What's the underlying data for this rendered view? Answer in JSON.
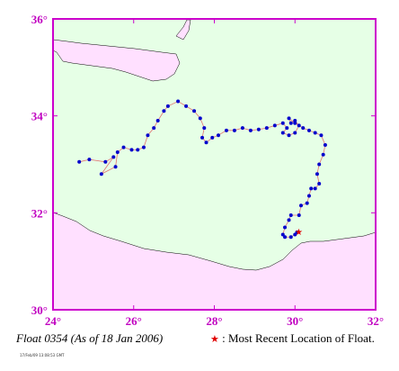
{
  "map": {
    "lon_range": [
      24,
      32
    ],
    "lat_range": [
      30,
      36
    ],
    "sea_color": "#e6ffe6",
    "land_color": "#ffe0ff",
    "frame_color": "#cc00cc",
    "track_color": "#0000cc",
    "line_color": "#e07070",
    "recent_color": "#e00000",
    "x_ticks": [
      {
        "value": 24,
        "label": "24°"
      },
      {
        "value": 26,
        "label": "26°"
      },
      {
        "value": 28,
        "label": "28°"
      },
      {
        "value": 30,
        "label": "30°"
      },
      {
        "value": 32,
        "label": "32°"
      }
    ],
    "y_ticks": [
      {
        "value": 30,
        "label": "30°"
      },
      {
        "value": 32,
        "label": "32°"
      },
      {
        "value": 34,
        "label": "34°"
      },
      {
        "value": 36,
        "label": "36°"
      }
    ],
    "track": [
      [
        24.65,
        33.05
      ],
      [
        24.9,
        33.1
      ],
      [
        25.3,
        33.05
      ],
      [
        25.5,
        33.15
      ],
      [
        25.2,
        32.8
      ],
      [
        25.55,
        32.95
      ],
      [
        25.6,
        33.25
      ],
      [
        25.75,
        33.35
      ],
      [
        25.95,
        33.3
      ],
      [
        26.1,
        33.3
      ],
      [
        26.25,
        33.35
      ],
      [
        26.35,
        33.6
      ],
      [
        26.5,
        33.75
      ],
      [
        26.6,
        33.9
      ],
      [
        26.75,
        34.1
      ],
      [
        26.85,
        34.2
      ],
      [
        27.1,
        34.3
      ],
      [
        27.3,
        34.2
      ],
      [
        27.5,
        34.1
      ],
      [
        27.65,
        33.95
      ],
      [
        27.75,
        33.75
      ],
      [
        27.7,
        33.55
      ],
      [
        27.8,
        33.45
      ],
      [
        27.95,
        33.55
      ],
      [
        28.1,
        33.6
      ],
      [
        28.3,
        33.7
      ],
      [
        28.5,
        33.7
      ],
      [
        28.7,
        33.75
      ],
      [
        28.9,
        33.7
      ],
      [
        29.1,
        33.72
      ],
      [
        29.3,
        33.75
      ],
      [
        29.5,
        33.8
      ],
      [
        29.7,
        33.85
      ],
      [
        29.8,
        33.75
      ],
      [
        29.7,
        33.65
      ],
      [
        29.85,
        33.6
      ],
      [
        30.0,
        33.65
      ],
      [
        30.1,
        33.8
      ],
      [
        30.0,
        33.9
      ],
      [
        29.9,
        33.85
      ],
      [
        29.85,
        33.95
      ],
      [
        30.0,
        33.85
      ],
      [
        30.2,
        33.75
      ],
      [
        30.35,
        33.7
      ],
      [
        30.5,
        33.65
      ],
      [
        30.65,
        33.6
      ],
      [
        30.75,
        33.4
      ],
      [
        30.7,
        33.2
      ],
      [
        30.6,
        33.0
      ],
      [
        30.55,
        32.8
      ],
      [
        30.6,
        32.6
      ],
      [
        30.5,
        32.5
      ],
      [
        30.4,
        32.5
      ],
      [
        30.35,
        32.35
      ],
      [
        30.3,
        32.2
      ],
      [
        30.15,
        32.15
      ],
      [
        30.1,
        31.95
      ],
      [
        29.9,
        31.95
      ],
      [
        29.85,
        31.85
      ],
      [
        29.75,
        31.7
      ],
      [
        29.7,
        31.55
      ],
      [
        29.75,
        31.5
      ],
      [
        29.9,
        31.5
      ],
      [
        30.0,
        31.55
      ],
      [
        30.05,
        31.6
      ]
    ],
    "recent_position": [
      30.05,
      31.6
    ]
  },
  "caption": {
    "float_title": "Float 0354 (As of 18 Jan 2006)",
    "legend_text": ": Most Recent Location of Float.",
    "legend_symbol": "★",
    "fine_print": "17/Feb/09 13:08:53 GMT"
  }
}
